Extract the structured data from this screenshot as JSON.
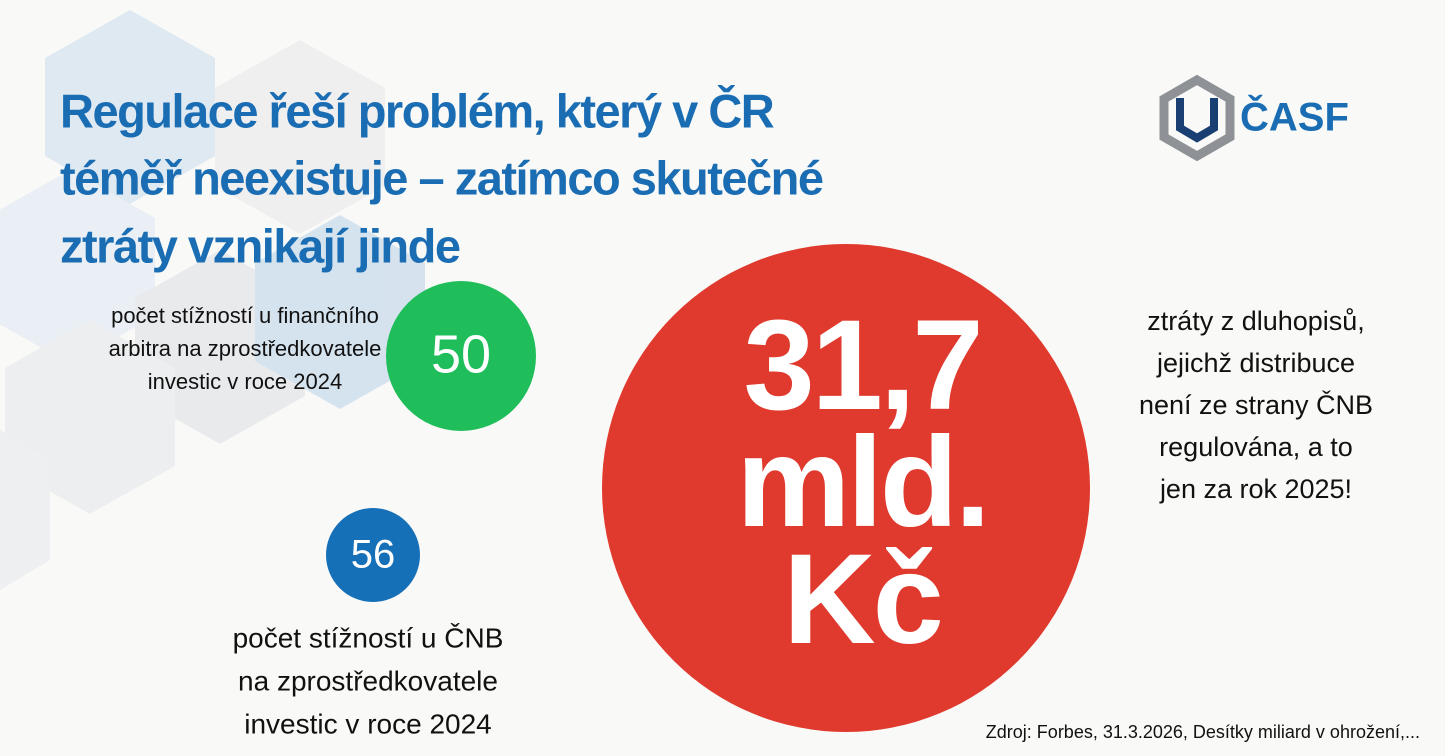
{
  "title": {
    "lines": [
      "Regulace řeší problém, který v ČR",
      "téměř neexistuje – zatímco skutečné",
      "ztráty vznikají jinde"
    ]
  },
  "logo": {
    "text": "ČASF"
  },
  "stats": [
    {
      "value": "50",
      "label_lines": [
        "počet stížností u finančního",
        "arbitra na zprostředkovatele",
        "investic v roce 2024"
      ]
    },
    {
      "value": "56",
      "label_lines": [
        "počet stížností u ČNB",
        "na zprostředkovatele",
        "investic v roce 2024"
      ]
    },
    {
      "value_lines": [
        "31,7",
        "mld.",
        "Kč"
      ],
      "label_lines": [
        "ztráty z dluhopisů,",
        "jejichž distribuce",
        "není ze strany ČNB",
        "regulována, a to",
        "jen za rok 2025!"
      ]
    }
  ],
  "source": "Zdroj: Forbes, 31.3.2026, Desítky miliard v ohrožení,..."
}
